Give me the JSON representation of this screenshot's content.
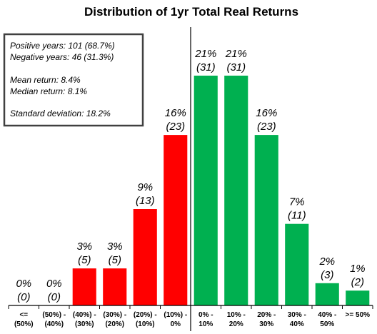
{
  "chart_data": {
    "type": "bar",
    "title": "Distribution of 1yr Total Real Returns",
    "xlabel": "",
    "ylabel": "",
    "categories": [
      [
        "<=",
        "(50%)"
      ],
      [
        "(50%) -",
        "(40%)"
      ],
      [
        "(40%) -",
        "(30%)"
      ],
      [
        "(30%) -",
        "(20%)"
      ],
      [
        "(20%) -",
        "(10%)"
      ],
      [
        "(10%) -",
        "0%"
      ],
      [
        "0% -",
        "10%"
      ],
      [
        "10% -",
        "20%"
      ],
      [
        "20% -",
        "30%"
      ],
      [
        "30% -",
        "40%"
      ],
      [
        "40% -",
        "50%"
      ],
      [
        ">= 50%"
      ]
    ],
    "counts": [
      0,
      0,
      5,
      5,
      13,
      23,
      31,
      31,
      23,
      11,
      3,
      2
    ],
    "pct_labels": [
      "0%",
      "0%",
      "3%",
      "3%",
      "9%",
      "16%",
      "21%",
      "21%",
      "16%",
      "7%",
      "2%",
      "1%"
    ],
    "count_labels": [
      "(0)",
      "(0)",
      "(5)",
      "(5)",
      "(13)",
      "(23)",
      "(31)",
      "(31)",
      "(23)",
      "(11)",
      "(3)",
      "(2)"
    ],
    "colors": [
      "#ff0000",
      "#ff0000",
      "#ff0000",
      "#ff0000",
      "#ff0000",
      "#ff0000",
      "#00b050",
      "#00b050",
      "#00b050",
      "#00b050",
      "#00b050",
      "#00b050"
    ],
    "ylim": [
      0,
      31
    ],
    "grid": false,
    "zero_divider_after_category": 5
  },
  "stats_box": {
    "positive_years": "Positive years: 101 (68.7%)",
    "negative_years": "Negative years: 46 (31.3%)",
    "mean_return": "Mean return: 8.4%",
    "median_return": "Median return: 8.1%",
    "standard_deviation": "Standard deviation: 18.2%"
  }
}
